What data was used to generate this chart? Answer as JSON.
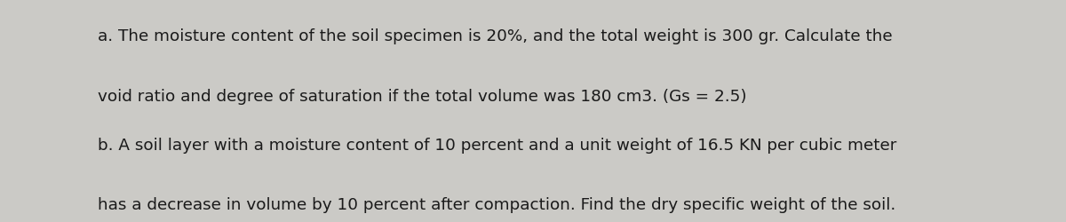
{
  "background_color": "#cbcac6",
  "text_color": "#1a1a1a",
  "line_a1": "a. The moisture content of the soil specimen is 20%, and the total weight is 300 gr. Calculate the",
  "line_a2": "void ratio and degree of saturation if the total volume was 180 cm3. (Gs = 2.5)",
  "line_b1": "b. A soil layer with a moisture content of 10 percent and a unit weight of 16.5 KN per cubic meter",
  "line_b2": "has a decrease in volume by 10 percent after compaction. Find the dry specific weight of the soil.",
  "fontsize": 13.2,
  "font_family": "DejaVu Sans"
}
